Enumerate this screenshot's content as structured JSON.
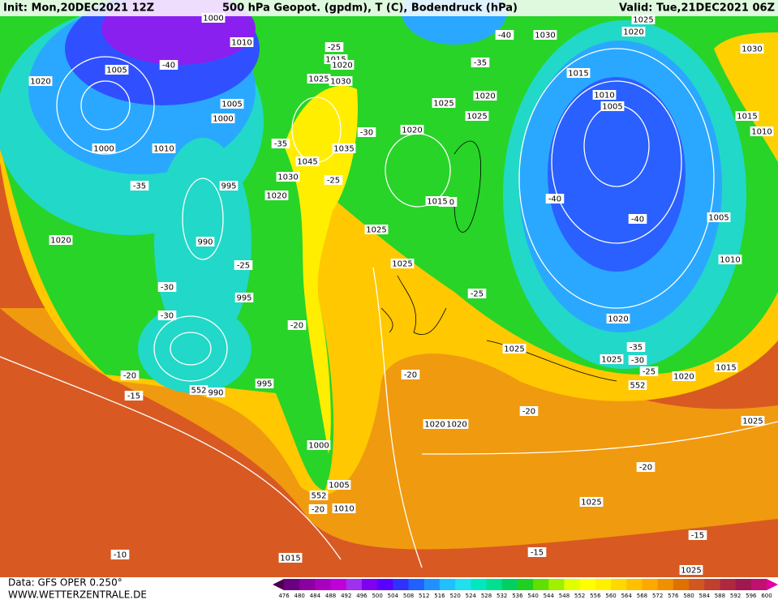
{
  "header": {
    "init": "Init: Mon,20DEC2021 12Z",
    "title": "500 hPa Geopot. (gpdm), T (C), Bodendruck (hPa)",
    "valid": "Valid: Tue,21DEC2021 06Z"
  },
  "footer": {
    "data": "Data: GFS OPER 0.250°",
    "site": "WWW.WETTERZENTRALE.DE"
  },
  "colorbar": {
    "labels": [
      476,
      480,
      484,
      488,
      492,
      496,
      500,
      504,
      508,
      512,
      516,
      520,
      524,
      528,
      532,
      536,
      540,
      544,
      548,
      552,
      556,
      560,
      564,
      568,
      572,
      576,
      580,
      584,
      588,
      592,
      596,
      600
    ]
  },
  "map_labels": [
    "1000",
    "1010",
    "1005",
    "-40",
    "1020",
    "1000",
    "1010",
    "1005",
    "1000",
    "-35",
    "995",
    "990",
    "1020",
    "-25",
    "-30",
    "995",
    "-30",
    "-20",
    "-20",
    "-15",
    "552",
    "990",
    "995",
    "1000",
    "1005",
    "552",
    "-20",
    "1010",
    "1015",
    "-10",
    "-25",
    "1015",
    "1020",
    "1025",
    "1030",
    "-30",
    "1035",
    "-35",
    "1045",
    "1030",
    "-25",
    "1020",
    "1025",
    "1025",
    "-25",
    "-20",
    "1025",
    "1020",
    "1025",
    "1020",
    "1025",
    "-35",
    "-40",
    "1030",
    "1025",
    "1020",
    "1015",
    "1010",
    "1005",
    "1030",
    "1015",
    "1010",
    "-30",
    "1015",
    "-40",
    "-40",
    "1005",
    "1010",
    "1020",
    "-35",
    "1025",
    "-30",
    "-25",
    "1020",
    "1015",
    "552",
    "1025",
    "1020",
    "1020",
    "-20",
    "-20",
    "1025",
    "-15",
    "-15",
    "1025"
  ]
}
